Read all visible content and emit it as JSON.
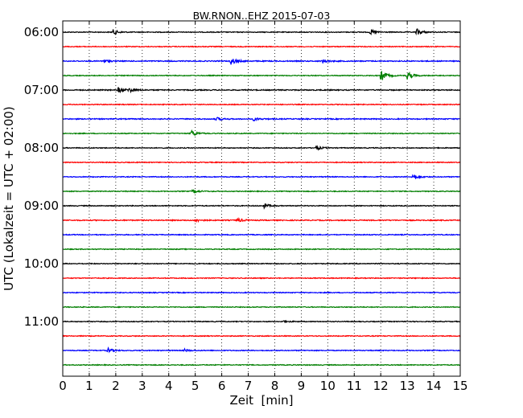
{
  "chart_data": {
    "type": "line",
    "title": "BW.RNON..EHZ 2015-07-03",
    "xlabel": "Zeit  [min]",
    "ylabel": "UTC (Lokalzeit = UTC + 02:00)",
    "xlim": [
      0,
      15
    ],
    "x_ticks": [
      "0",
      "1",
      "2",
      "3",
      "4",
      "5",
      "6",
      "7",
      "8",
      "9",
      "10",
      "11",
      "12",
      "13",
      "14",
      "15"
    ],
    "y_ticks": [
      "06:00",
      "07:00",
      "08:00",
      "09:00",
      "10:00",
      "11:00"
    ],
    "grid": "vertical dotted",
    "colors": [
      "#000000",
      "#ff0000",
      "#0000ff",
      "#007f00"
    ],
    "traces": [
      {
        "start": "06:00",
        "color": "#000000",
        "noise": 0.25,
        "events": [
          {
            "t": 1.9,
            "amp": 1.5
          },
          {
            "t": 11.6,
            "amp": 1.6
          },
          {
            "t": 13.35,
            "amp": 2.2
          }
        ]
      },
      {
        "start": "06:15",
        "color": "#ff0000",
        "noise": 0.25,
        "events": []
      },
      {
        "start": "06:30",
        "color": "#0000ff",
        "noise": 0.3,
        "events": [
          {
            "t": 1.5,
            "amp": 1.2
          },
          {
            "t": 6.35,
            "amp": 2.2
          },
          {
            "t": 9.8,
            "amp": 1.2
          }
        ]
      },
      {
        "start": "06:45",
        "color": "#007f00",
        "noise": 0.25,
        "events": [
          {
            "t": 12.0,
            "amp": 3.6
          },
          {
            "t": 13.0,
            "amp": 2.5
          }
        ]
      },
      {
        "start": "07:00",
        "color": "#000000",
        "noise": 0.3,
        "events": [
          {
            "t": 2.1,
            "amp": 1.8
          },
          {
            "t": 2.5,
            "amp": 1.4
          }
        ]
      },
      {
        "start": "07:15",
        "color": "#ff0000",
        "noise": 0.25,
        "events": []
      },
      {
        "start": "07:30",
        "color": "#0000ff",
        "noise": 0.3,
        "events": [
          {
            "t": 5.8,
            "amp": 1.0
          },
          {
            "t": 7.2,
            "amp": 1.0
          }
        ]
      },
      {
        "start": "07:45",
        "color": "#007f00",
        "noise": 0.25,
        "events": [
          {
            "t": 4.85,
            "amp": 2.0
          }
        ]
      },
      {
        "start": "08:00",
        "color": "#000000",
        "noise": 0.25,
        "events": [
          {
            "t": 9.55,
            "amp": 1.4
          }
        ]
      },
      {
        "start": "08:15",
        "color": "#ff0000",
        "noise": 0.25,
        "events": []
      },
      {
        "start": "08:30",
        "color": "#0000ff",
        "noise": 0.25,
        "events": [
          {
            "t": 13.2,
            "amp": 2.2
          }
        ]
      },
      {
        "start": "08:45",
        "color": "#007f00",
        "noise": 0.25,
        "events": [
          {
            "t": 4.9,
            "amp": 1.2
          }
        ]
      },
      {
        "start": "09:00",
        "color": "#000000",
        "noise": 0.25,
        "events": [
          {
            "t": 7.6,
            "amp": 1.3
          }
        ]
      },
      {
        "start": "09:15",
        "color": "#ff0000",
        "noise": 0.3,
        "events": [
          {
            "t": 5.0,
            "amp": 1.0
          },
          {
            "t": 6.6,
            "amp": 1.2
          }
        ]
      },
      {
        "start": "09:30",
        "color": "#0000ff",
        "noise": 0.25,
        "events": []
      },
      {
        "start": "09:45",
        "color": "#007f00",
        "noise": 0.25,
        "events": []
      },
      {
        "start": "10:00",
        "color": "#000000",
        "noise": 0.25,
        "events": []
      },
      {
        "start": "10:15",
        "color": "#ff0000",
        "noise": 0.25,
        "events": []
      },
      {
        "start": "10:30",
        "color": "#0000ff",
        "noise": 0.25,
        "events": []
      },
      {
        "start": "10:45",
        "color": "#007f00",
        "noise": 0.25,
        "events": []
      },
      {
        "start": "11:00",
        "color": "#000000",
        "noise": 0.25,
        "events": [
          {
            "t": 8.3,
            "amp": 0.8
          }
        ]
      },
      {
        "start": "11:15",
        "color": "#ff0000",
        "noise": 0.25,
        "events": []
      },
      {
        "start": "11:30",
        "color": "#0000ff",
        "noise": 0.25,
        "events": [
          {
            "t": 1.7,
            "amp": 1.5
          },
          {
            "t": 4.6,
            "amp": 0.8
          }
        ]
      },
      {
        "start": "11:45",
        "color": "#007f00",
        "noise": 0.25,
        "events": []
      }
    ]
  }
}
